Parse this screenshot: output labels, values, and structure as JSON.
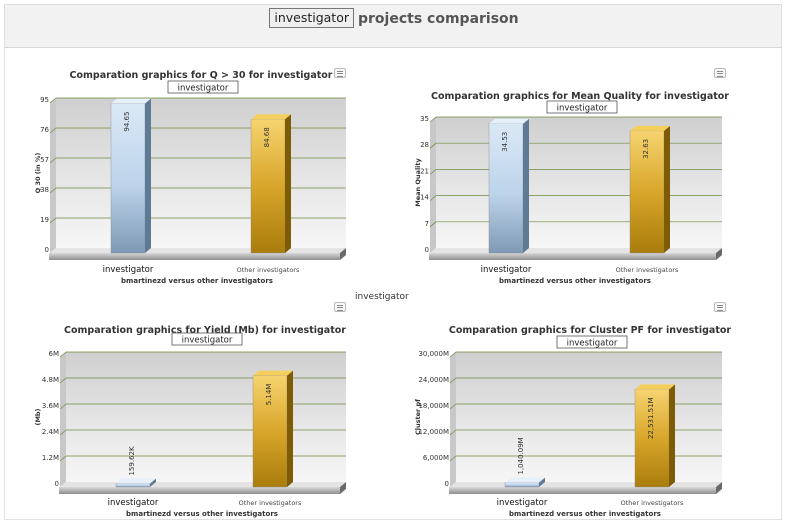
{
  "header": {
    "user_label": "investigator",
    "title_suffix": "projects comparison"
  },
  "stray_label": "investigator",
  "charts": [
    {
      "title": "Comparation graphics for Q > 30 for investigator",
      "user_label": "investigator",
      "ylabel": "Q 30 (in %)",
      "xlabel": "bmartinezd versus other investigators",
      "tick_labels": [
        "0",
        "19",
        "38",
        "57",
        "76",
        "95"
      ],
      "menu_icon": "hamburger-menu-icon"
    },
    {
      "title": "Comparation graphics for Mean Quality for investigator",
      "user_label": "investigator",
      "ylabel": "Mean Quality",
      "xlabel": "bmartinezd versus other investigators",
      "tick_labels": [
        "0",
        "7",
        "14",
        "21",
        "28",
        "35"
      ],
      "menu_icon": "hamburger-menu-icon"
    },
    {
      "title": "Comparation graphics for Yield (Mb) for investigator",
      "user_label": "investigator",
      "ylabel": "(Mb)",
      "xlabel": "bmartinezd versus other investigators",
      "tick_labels": [
        "0",
        "1.2M",
        "2.4M",
        "3.6M",
        "4.8M",
        "6M"
      ],
      "menu_icon": "hamburger-menu-icon"
    },
    {
      "title": "Comparation graphics for Cluster PF for investigator",
      "user_label": "investigator",
      "ylabel": "Cluster pf",
      "xlabel": "bmartinezd versus other investigators",
      "tick_labels": [
        "0",
        "6,000M",
        "12,000M",
        "18,000M",
        "24,000M",
        "30,000M"
      ],
      "menu_icon": "hamburger-menu-icon"
    }
  ],
  "chart_data": [
    {
      "type": "bar",
      "title": "Comparation graphics for Q > 30 for investigator",
      "xlabel": "bmartinezd versus other investigators",
      "ylabel": "Q 30 (in %)",
      "categories": [
        "investigator",
        "Other investigators"
      ],
      "values": [
        94.65,
        84.68
      ],
      "value_labels": [
        "94.65",
        "84.68"
      ],
      "ylim": [
        0,
        95
      ],
      "grid": true
    },
    {
      "type": "bar",
      "title": "Comparation graphics for Mean Quality for investigator",
      "xlabel": "bmartinezd versus other investigators",
      "ylabel": "Mean Quality",
      "categories": [
        "investigator",
        "Other investigators"
      ],
      "values": [
        34.53,
        32.63
      ],
      "value_labels": [
        "34.53",
        "32.63"
      ],
      "ylim": [
        0,
        35
      ],
      "grid": true
    },
    {
      "type": "bar",
      "title": "Comparation graphics for Yield (Mb) for investigator",
      "xlabel": "bmartinezd versus other investigators",
      "ylabel": "(Mb)",
      "categories": [
        "investigator",
        "Other investigators"
      ],
      "values": [
        159620,
        5140000
      ],
      "value_labels": [
        "159.62K",
        "5.14M"
      ],
      "ylim": [
        0,
        6000000
      ],
      "grid": true
    },
    {
      "type": "bar",
      "title": "Comparation graphics for Cluster PF for investigator",
      "xlabel": "bmartinezd versus other investigators",
      "ylabel": "Cluster pf",
      "categories": [
        "investigator",
        "Other investigators"
      ],
      "values": [
        1040090000,
        22531510000
      ],
      "value_labels": [
        "1,040.09M",
        "22,531.51M"
      ],
      "ylim": [
        0,
        30000000000
      ],
      "grid": true
    }
  ],
  "colors": {
    "bar_investigator": "#bcd3ea",
    "bar_investigator_dark": "#7f9ab5",
    "bar_other": "#d8a62a",
    "bar_other_dark": "#a97d0c",
    "gridline": "#6e8a3e",
    "plot_bg": "#e2e2e2",
    "header_text": "#555555"
  }
}
